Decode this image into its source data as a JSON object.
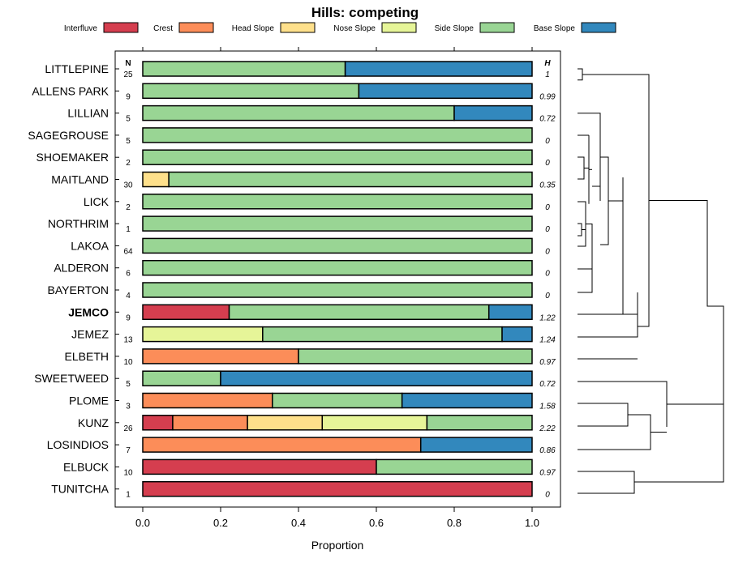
{
  "chart_data": {
    "type": "bar",
    "orientation": "horizontal",
    "stacked": true,
    "title": "Hills: competing",
    "xlabel": "Proportion",
    "ylabel": "",
    "xlim": [
      0,
      1
    ],
    "xticks": [
      "0.0",
      "0.2",
      "0.4",
      "0.6",
      "0.8",
      "1.0"
    ],
    "n_header": "N",
    "h_header": "H",
    "legend": [
      {
        "name": "Interfluve",
        "color": "#d53e4f"
      },
      {
        "name": "Crest",
        "color": "#fc8d59"
      },
      {
        "name": "Head Slope",
        "color": "#fee08b"
      },
      {
        "name": "Nose Slope",
        "color": "#e6f598"
      },
      {
        "name": "Side Slope",
        "color": "#99d594"
      },
      {
        "name": "Base Slope",
        "color": "#3288bd"
      }
    ],
    "rows": [
      {
        "label": "LITTLEPINE",
        "n": "25",
        "h": "1",
        "bold": false,
        "values": [
          0,
          0,
          0,
          0,
          0.52,
          0.48
        ]
      },
      {
        "label": "ALLENS PARK",
        "n": "9",
        "h": "0.99",
        "bold": false,
        "values": [
          0,
          0,
          0,
          0,
          0.555,
          0.445
        ]
      },
      {
        "label": "LILLIAN",
        "n": "5",
        "h": "0.72",
        "bold": false,
        "values": [
          0,
          0,
          0,
          0,
          0.8,
          0.2
        ]
      },
      {
        "label": "SAGEGROUSE",
        "n": "5",
        "h": "0",
        "bold": false,
        "values": [
          0,
          0,
          0,
          0,
          1.0,
          0
        ]
      },
      {
        "label": "SHOEMAKER",
        "n": "2",
        "h": "0",
        "bold": false,
        "values": [
          0,
          0,
          0,
          0,
          1.0,
          0
        ]
      },
      {
        "label": "MAITLAND",
        "n": "30",
        "h": "0.35",
        "bold": false,
        "values": [
          0,
          0,
          0.067,
          0,
          0.933,
          0
        ]
      },
      {
        "label": "LICK",
        "n": "2",
        "h": "0",
        "bold": false,
        "values": [
          0,
          0,
          0,
          0,
          1.0,
          0
        ]
      },
      {
        "label": "NORTHRIM",
        "n": "1",
        "h": "0",
        "bold": false,
        "values": [
          0,
          0,
          0,
          0,
          1.0,
          0
        ]
      },
      {
        "label": "LAKOA",
        "n": "64",
        "h": "0",
        "bold": false,
        "values": [
          0,
          0,
          0,
          0,
          1.0,
          0
        ]
      },
      {
        "label": "ALDERON",
        "n": "6",
        "h": "0",
        "bold": false,
        "values": [
          0,
          0,
          0,
          0,
          1.0,
          0
        ]
      },
      {
        "label": "BAYERTON",
        "n": "4",
        "h": "0",
        "bold": false,
        "values": [
          0,
          0,
          0,
          0,
          1.0,
          0
        ]
      },
      {
        "label": "JEMCO",
        "n": "9",
        "h": "1.22",
        "bold": true,
        "values": [
          0.222,
          0,
          0,
          0,
          0.667,
          0.111
        ]
      },
      {
        "label": "JEMEZ",
        "n": "13",
        "h": "1.24",
        "bold": false,
        "values": [
          0,
          0,
          0,
          0.308,
          0.615,
          0.077
        ]
      },
      {
        "label": "ELBETH",
        "n": "10",
        "h": "0.97",
        "bold": false,
        "values": [
          0,
          0.4,
          0,
          0,
          0.6,
          0
        ]
      },
      {
        "label": "SWEETWEED",
        "n": "5",
        "h": "0.72",
        "bold": false,
        "values": [
          0,
          0,
          0,
          0,
          0.2,
          0.8
        ]
      },
      {
        "label": "PLOME",
        "n": "3",
        "h": "1.58",
        "bold": false,
        "values": [
          0,
          0.333,
          0,
          0,
          0.333,
          0.334
        ]
      },
      {
        "label": "KUNZ",
        "n": "26",
        "h": "2.22",
        "bold": false,
        "values": [
          0.077,
          0.192,
          0.192,
          0.269,
          0.27,
          0
        ]
      },
      {
        "label": "LOSINDIOS",
        "n": "7",
        "h": "0.86",
        "bold": false,
        "values": [
          0,
          0.714,
          0,
          0,
          0,
          0.286
        ]
      },
      {
        "label": "ELBUCK",
        "n": "10",
        "h": "0.97",
        "bold": false,
        "values": [
          0.6,
          0,
          0,
          0,
          0.4,
          0
        ]
      },
      {
        "label": "TUNITCHA",
        "n": "1",
        "h": "0",
        "bold": false,
        "values": [
          1.0,
          0,
          0,
          0,
          0,
          0
        ]
      }
    ]
  }
}
